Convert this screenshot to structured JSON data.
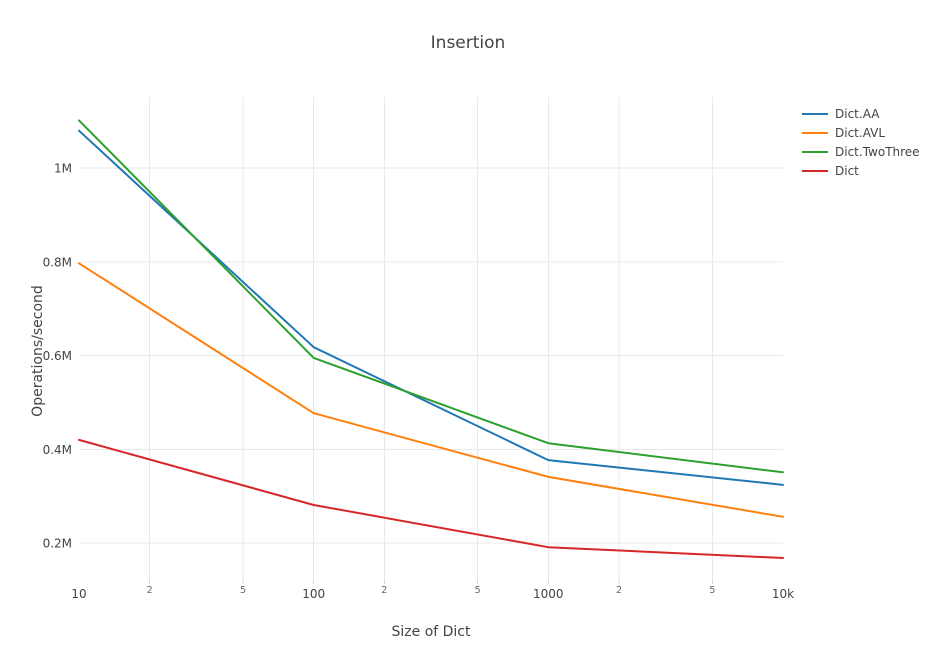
{
  "chart_data": {
    "type": "line",
    "title": "Insertion",
    "background_color": "#ffffff",
    "text_color": "#444444",
    "minor_text_color": "#666666",
    "grid_color": "#e9e9e9",
    "tick_mark_color": "#d8d8d8",
    "x_scale": "log",
    "x": [
      10,
      100,
      1000,
      10000
    ],
    "series": [
      {
        "name": "Dict.AA",
        "color": "#1f77b4",
        "values": [
          1080000,
          618000,
          377000,
          324000
        ]
      },
      {
        "name": "Dict.AVL",
        "color": "#ff7f0e",
        "values": [
          797000,
          477000,
          341000,
          256000
        ]
      },
      {
        "name": "Dict.TwoThree",
        "color": "#2ca02c",
        "values": [
          1102000,
          595000,
          413000,
          351000
        ]
      },
      {
        "name": "Dict",
        "color": "#d62728",
        "values": [
          420000,
          281000,
          191000,
          168000
        ]
      }
    ],
    "xaxis": {
      "title": "Size of Dict",
      "range": [
        10,
        10000
      ],
      "ticks": [
        {
          "v": 10,
          "label": "10",
          "minor": false,
          "edge": true
        },
        {
          "v": 20,
          "label": "2",
          "minor": true
        },
        {
          "v": 50,
          "label": "5",
          "minor": true
        },
        {
          "v": 100,
          "label": "100",
          "minor": false
        },
        {
          "v": 200,
          "label": "2",
          "minor": true
        },
        {
          "v": 500,
          "label": "5",
          "minor": true
        },
        {
          "v": 1000,
          "label": "1000",
          "minor": false
        },
        {
          "v": 2000,
          "label": "2",
          "minor": true
        },
        {
          "v": 5000,
          "label": "5",
          "minor": true
        },
        {
          "v": 10000,
          "label": "10k",
          "minor": false,
          "edge": true
        }
      ]
    },
    "yaxis": {
      "title": "Operations/second",
      "range": [
        121000,
        1152000
      ],
      "ticks": [
        {
          "v": 200000,
          "label": "0.2M"
        },
        {
          "v": 400000,
          "label": "0.4M"
        },
        {
          "v": 600000,
          "label": "0.6M"
        },
        {
          "v": 800000,
          "label": "0.8M"
        },
        {
          "v": 1000000,
          "label": "1M"
        }
      ]
    },
    "legend_position": "right-top",
    "grid": true
  }
}
